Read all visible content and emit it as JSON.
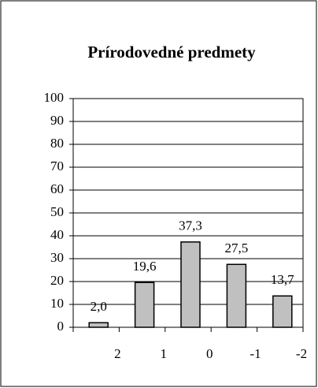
{
  "chart_data": {
    "type": "bar",
    "title": "Prírodovedné predmety",
    "categories": [
      "2",
      "1",
      "0",
      "-1",
      "-2"
    ],
    "values": [
      2.0,
      19.6,
      37.3,
      27.5,
      13.7
    ],
    "value_labels": [
      "2,0",
      "19,6",
      "37,3",
      "27,5",
      "13,7"
    ],
    "color": "#c0c0c0",
    "ylim": [
      0,
      100
    ],
    "yticks": [
      0,
      10,
      20,
      30,
      40,
      50,
      60,
      70,
      80,
      90,
      100
    ],
    "grid": true
  }
}
